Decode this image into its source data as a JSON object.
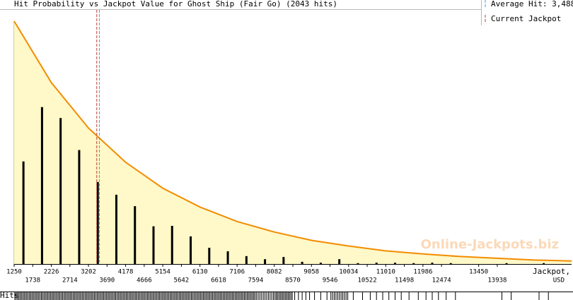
{
  "chart_data": {
    "type": "bar",
    "title": "Hit Probability vs Jackpot Value for Ghost Ship (Fair Go) (2043 hits)",
    "legend": {
      "average_hit": "Average Hit: 3,488",
      "current_jackpot": "Current Jackpot"
    },
    "average_hit": 3488,
    "current_jackpot": 3420,
    "average_color": "#4a9ad8",
    "jackpot_color": "#c0392b",
    "x_label": "Jackpot,",
    "x_unit": "USD",
    "rug_label": "Hits",
    "watermark": "Online-Jackpots.biz",
    "x": [
      1494,
      1982,
      2470,
      2958,
      3446,
      3934,
      4422,
      4910,
      5398,
      5886,
      6374,
      6862,
      7350,
      7838,
      8326,
      8814,
      9302,
      9790,
      10278,
      10766,
      11254,
      11742,
      12230,
      12718,
      13206,
      13694,
      14182,
      14670,
      15158,
      15646
    ],
    "values": [
      234,
      358,
      333,
      260,
      187,
      158,
      132,
      86,
      87,
      63,
      37,
      29,
      18,
      11,
      16,
      5,
      3,
      11,
      2,
      3,
      3,
      2,
      3,
      2,
      0,
      0,
      2,
      0,
      2,
      0
    ],
    "color": "#000000",
    "fit": {
      "x": [
        1250,
        2226,
        3202,
        4178,
        5154,
        6130,
        7106,
        8082,
        9058,
        10034,
        11010,
        11986,
        12962,
        13938,
        14914,
        15890
      ],
      "values": [
        554,
        414,
        310,
        232,
        173,
        130,
        97,
        73,
        54,
        41,
        30,
        23,
        17,
        13,
        9,
        7
      ],
      "color": "#f28c00",
      "fill": "#fff8c8"
    },
    "xlim": [
      1250,
      15890
    ],
    "ylim": [
      0,
      554
    ],
    "xticks": [
      1250,
      1738,
      2226,
      2714,
      3202,
      3690,
      4178,
      4666,
      5154,
      5642,
      6130,
      6618,
      7106,
      7594,
      8082,
      8570,
      9058,
      9546,
      10034,
      10522,
      11010,
      11498,
      11986,
      12474,
      13450,
      13938
    ]
  }
}
